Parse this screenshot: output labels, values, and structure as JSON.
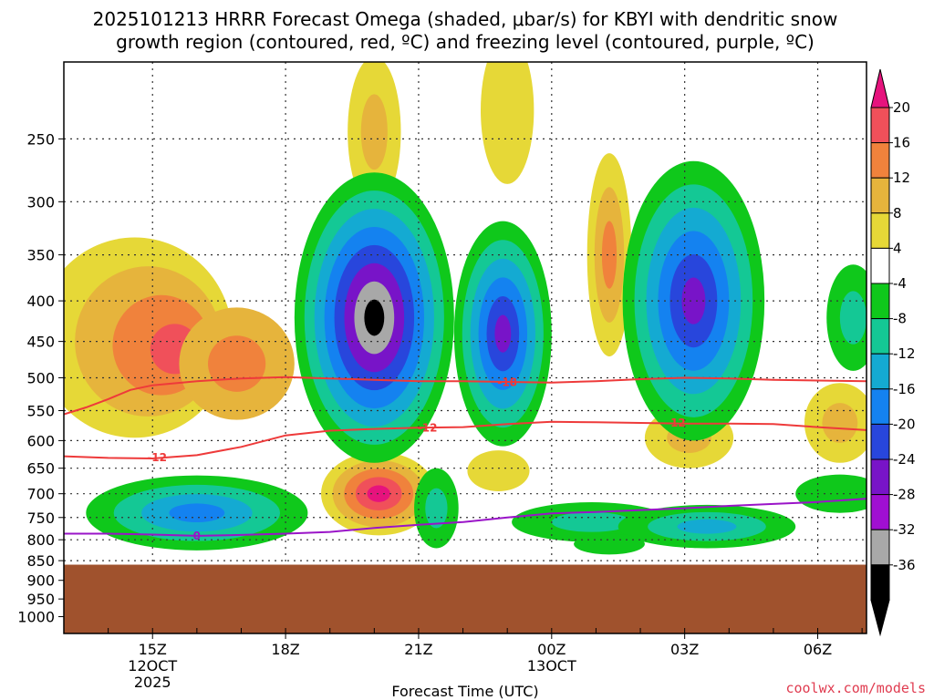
{
  "chart_data": {
    "type": "heatmap",
    "title_line1": "2025101213 HRRR Forecast Omega (shaded, μbar/s) for KBYI with dendritic snow",
    "title_line2": "growth region (contoured, red, ºC) and freezing level (contoured, purple, ºC)",
    "xlabel": "Forecast Time (UTC)",
    "credit": "coolwx.com/models",
    "x_range_hours": [
      13.0,
      31.1
    ],
    "y_range_hPa": [
      200,
      1050
    ],
    "surface_pressure_hPa": 860,
    "x_ticks": [
      {
        "hour": 15,
        "lines": [
          "15Z",
          "12OCT",
          "2025"
        ]
      },
      {
        "hour": 18,
        "lines": [
          "18Z"
        ]
      },
      {
        "hour": 21,
        "lines": [
          "21Z"
        ]
      },
      {
        "hour": 24,
        "lines": [
          "00Z",
          "13OCT"
        ]
      },
      {
        "hour": 27,
        "lines": [
          "03Z"
        ]
      },
      {
        "hour": 30,
        "lines": [
          "06Z"
        ]
      }
    ],
    "y_ticks_grid": [
      250,
      300,
      350,
      400,
      450,
      500,
      550,
      600,
      650,
      700,
      750,
      800,
      850
    ],
    "y_ticks_label_only": [
      900,
      950,
      1000
    ],
    "colorbar": {
      "levels": [
        20,
        16,
        12,
        8,
        4,
        -4,
        -8,
        -12,
        -16,
        -20,
        -24,
        -28,
        -32,
        -36
      ],
      "colors": [
        "#f0505a",
        "#f0823c",
        "#e6b43c",
        "#e6d837",
        "#ffffff",
        "#0fc81b",
        "#14c895",
        "#14aad2",
        "#1482f0",
        "#2846dc",
        "#7814c8",
        "#a00fd2",
        "#a8a8a8",
        "#000000"
      ],
      "top_arrow_color": "#e6137d",
      "bottom_arrow_color": "#000000"
    },
    "contour_labels": {
      "dgz_upper": "-18",
      "dgz_lower_right": "-12",
      "dgz_lower_mid": "-12",
      "dgz_lower_left": "-12",
      "freezing": "0"
    },
    "series": [
      {
        "name": "-18C isotherm",
        "points": [
          [
            13.0,
            556
          ],
          [
            13.5,
            545
          ],
          [
            14.0,
            532
          ],
          [
            14.5,
            518
          ],
          [
            15.0,
            511
          ],
          [
            16.0,
            505
          ],
          [
            17.0,
            501
          ],
          [
            18.0,
            499
          ],
          [
            19.0,
            501
          ],
          [
            20.0,
            503
          ],
          [
            21.0,
            505
          ],
          [
            22.0,
            505
          ],
          [
            23.0,
            506
          ],
          [
            24.0,
            507
          ],
          [
            25.0,
            505
          ],
          [
            26.0,
            502
          ],
          [
            27.0,
            500
          ],
          [
            28.0,
            501
          ],
          [
            29.0,
            503
          ],
          [
            30.0,
            504
          ],
          [
            31.1,
            505
          ]
        ]
      },
      {
        "name": "-12C isotherm",
        "points": [
          [
            13.0,
            628
          ],
          [
            14.0,
            631
          ],
          [
            15.0,
            632
          ],
          [
            16.0,
            626
          ],
          [
            17.0,
            611
          ],
          [
            18.0,
            591
          ],
          [
            19.0,
            583
          ],
          [
            20.0,
            580
          ],
          [
            21.0,
            578
          ],
          [
            22.0,
            577
          ],
          [
            23.0,
            572
          ],
          [
            24.0,
            568
          ],
          [
            25.0,
            569
          ],
          [
            26.0,
            570
          ],
          [
            27.0,
            571
          ],
          [
            28.0,
            571
          ],
          [
            29.0,
            572
          ],
          [
            30.0,
            577
          ],
          [
            31.1,
            582
          ]
        ]
      },
      {
        "name": "0C freezing level",
        "points": [
          [
            13.0,
            786
          ],
          [
            14.0,
            786
          ],
          [
            15.0,
            788
          ],
          [
            16.0,
            791
          ],
          [
            17.0,
            789
          ],
          [
            18.0,
            786
          ],
          [
            19.0,
            782
          ],
          [
            20.0,
            773
          ],
          [
            21.0,
            766
          ],
          [
            22.0,
            760
          ],
          [
            23.0,
            750
          ],
          [
            24.0,
            741
          ],
          [
            25.0,
            738
          ],
          [
            26.0,
            734
          ],
          [
            27.0,
            730
          ],
          [
            28.0,
            725
          ],
          [
            29.0,
            721
          ],
          [
            30.0,
            717
          ],
          [
            31.1,
            710
          ]
        ]
      }
    ],
    "omega_blobs": [
      {
        "hour": 14.6,
        "hPa": 445,
        "rh": 2.2,
        "rp": 150,
        "levels": [
          "#e6d837",
          "#e6b43c",
          "#f0823c",
          "#f0505a"
        ],
        "peak": [
          15.8,
          465
        ]
      },
      {
        "hour": 16.9,
        "hPa": 480,
        "rh": 1.3,
        "rp": 85,
        "levels": [
          "#e6b43c",
          "#f0823c"
        ]
      },
      {
        "hour": 20.0,
        "hPa": 245,
        "rh": 0.6,
        "rp": 60,
        "levels": [
          "#e6d837",
          "#e6b43c"
        ]
      },
      {
        "hour": 23.0,
        "hPa": 230,
        "rh": 0.6,
        "rp": 55,
        "levels": [
          "#e6d837"
        ]
      },
      {
        "hour": 20.1,
        "hPa": 700,
        "rh": 1.3,
        "rp": 90,
        "levels": [
          "#e6d837",
          "#e6b43c",
          "#f0823c",
          "#f0505a",
          "#e6137d"
        ]
      },
      {
        "hour": 25.3,
        "hPa": 350,
        "rh": 0.5,
        "rp": 120,
        "levels": [
          "#e6d837",
          "#e6b43c",
          "#f0823c"
        ]
      },
      {
        "hour": 22.8,
        "hPa": 655,
        "rh": 0.7,
        "rp": 40,
        "levels": [
          "#e6d837"
        ]
      },
      {
        "hour": 27.1,
        "hPa": 595,
        "rh": 1.0,
        "rp": 55,
        "levels": [
          "#e6d837",
          "#e6b43c"
        ]
      },
      {
        "hour": 30.5,
        "hPa": 570,
        "rh": 0.8,
        "rp": 70,
        "levels": [
          "#e6d837",
          "#e6b43c"
        ]
      },
      {
        "hour": 20.0,
        "hPa": 420,
        "rh": 1.8,
        "rp": 220,
        "levels": [
          "#0fc81b",
          "#14c895",
          "#14aad2",
          "#1482f0",
          "#2846dc",
          "#7814c8",
          "#a8a8a8",
          "#000000"
        ]
      },
      {
        "hour": 22.9,
        "hPa": 440,
        "rh": 1.1,
        "rp": 170,
        "levels": [
          "#0fc81b",
          "#14c895",
          "#14aad2",
          "#1482f0",
          "#2846dc",
          "#7814c8"
        ]
      },
      {
        "hour": 27.2,
        "hPa": 400,
        "rh": 1.6,
        "rp": 200,
        "levels": [
          "#0fc81b",
          "#14c895",
          "#14aad2",
          "#1482f0",
          "#2846dc",
          "#7814c8"
        ]
      },
      {
        "hour": 16.0,
        "hPa": 740,
        "rh": 2.5,
        "rp": 85,
        "levels": [
          "#0fc81b",
          "#14c895",
          "#14aad2",
          "#1482f0"
        ]
      },
      {
        "hour": 21.4,
        "hPa": 730,
        "rh": 0.5,
        "rp": 90,
        "levels": [
          "#0fc81b",
          "#14c895"
        ]
      },
      {
        "hour": 24.9,
        "hPa": 760,
        "rh": 1.8,
        "rp": 45,
        "levels": [
          "#0fc81b",
          "#14c895"
        ]
      },
      {
        "hour": 27.5,
        "hPa": 770,
        "rh": 2.0,
        "rp": 50,
        "levels": [
          "#0fc81b",
          "#14c895",
          "#14aad2"
        ]
      },
      {
        "hour": 30.8,
        "hPa": 420,
        "rh": 0.6,
        "rp": 70,
        "levels": [
          "#0fc81b",
          "#14c895"
        ]
      },
      {
        "hour": 25.3,
        "hPa": 810,
        "rh": 0.8,
        "rp": 25,
        "levels": [
          "#0fc81b"
        ]
      },
      {
        "hour": 30.5,
        "hPa": 700,
        "rh": 1.0,
        "rp": 40,
        "levels": [
          "#0fc81b"
        ]
      }
    ]
  }
}
